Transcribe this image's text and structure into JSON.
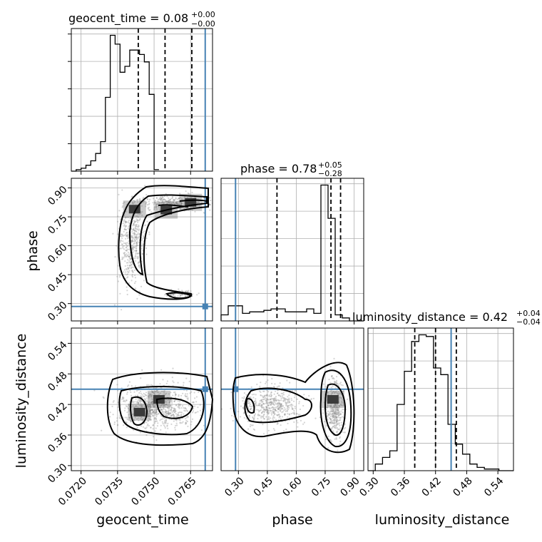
{
  "colors": {
    "truth": "#4682b4",
    "contour": "#000000",
    "grid": "#b0b0b0",
    "points": "#888888"
  },
  "chart_data": [
    {
      "type": "histogram",
      "panel": "geocent_time-marginal",
      "title_text": "geocent_time = 0.08",
      "title_sup": "+0.00",
      "title_sub": "−0.00",
      "xlim": [
        0.0716,
        0.0774
      ],
      "bins_start": 0.0716,
      "bins_step": 0.0002,
      "counts": [
        0,
        1,
        2,
        4,
        7,
        12,
        20,
        50,
        92,
        86,
        67,
        71,
        82,
        82,
        79,
        74,
        52,
        1
      ],
      "quantile_lines": [
        0.07435,
        0.07545,
        0.07655
      ],
      "truth": 0.0771,
      "grid": true
    },
    {
      "type": "histogram",
      "panel": "phase-marginal",
      "title_text": "phase = 0.78",
      "title_sup": "+0.05",
      "title_sub": "−0.28",
      "xlim": [
        0.21,
        0.95
      ],
      "bins_start": 0.21,
      "bins_step": 0.037,
      "counts": [
        4,
        10,
        10,
        5,
        6,
        6,
        7,
        8,
        8,
        6,
        6,
        6,
        8,
        5,
        90,
        68,
        4,
        2,
        0,
        0
      ],
      "quantile_lines": [
        0.5,
        0.78,
        0.83
      ],
      "truth": 0.285,
      "xticks": [
        "0.30",
        "0.45",
        "0.60",
        "0.75",
        "0.90"
      ],
      "xtick_values": [
        0.3,
        0.45,
        0.6,
        0.75,
        0.9
      ],
      "xlabel": "phase",
      "grid": true
    },
    {
      "type": "histogram",
      "panel": "luminosity_distance-marginal",
      "title_text": "luminosity_distance = 0.42",
      "title_sup": "+0.04",
      "title_sub": "−0.04",
      "xlim": [
        0.29,
        0.57
      ],
      "bins_start": 0.29,
      "bins_step": 0.014,
      "counts": [
        0,
        4,
        8,
        12,
        40,
        60,
        78,
        82,
        81,
        62,
        58,
        28,
        16,
        10,
        4,
        2,
        1,
        1,
        0,
        0
      ],
      "quantile_lines": [
        0.38,
        0.42,
        0.46
      ],
      "truth": 0.45,
      "xticks": [
        "0.30",
        "0.36",
        "0.42",
        "0.48",
        "0.54"
      ],
      "xtick_values": [
        0.3,
        0.36,
        0.42,
        0.48,
        0.54
      ],
      "xlabel": "luminosity_distance",
      "grid": true
    },
    {
      "type": "scatter",
      "panel": "phase-vs-geocent_time",
      "x_param": "geocent_time",
      "y_param": "phase",
      "xlim": [
        0.0716,
        0.0774
      ],
      "ylim": [
        0.21,
        0.95
      ],
      "yticks": [
        "0.30",
        "0.45",
        "0.60",
        "0.75",
        "0.90"
      ],
      "ytick_values": [
        0.3,
        0.45,
        0.6,
        0.75,
        0.9
      ],
      "ylabel": "phase",
      "truth": [
        0.0771,
        0.285
      ],
      "dense_cells": [
        [
          0.0755,
          0.785
        ],
        [
          0.0765,
          0.825
        ],
        [
          0.0742,
          0.79
        ]
      ],
      "grid": true
    },
    {
      "type": "scatter",
      "panel": "luminosity_distance-vs-geocent_time",
      "x_param": "geocent_time",
      "y_param": "luminosity_distance",
      "xlim": [
        0.0716,
        0.0774
      ],
      "ylim": [
        0.29,
        0.57
      ],
      "xticks": [
        "0.0720",
        "0.0735",
        "0.0750",
        "0.0765"
      ],
      "xtick_values": [
        0.072,
        0.0735,
        0.075,
        0.0765
      ],
      "yticks": [
        "0.30",
        "0.36",
        "0.42",
        "0.48",
        "0.54"
      ],
      "ytick_values": [
        0.3,
        0.36,
        0.42,
        0.48,
        0.54
      ],
      "xlabel": "geocent_time",
      "ylabel": "luminosity_distance",
      "truth": [
        0.0771,
        0.45
      ],
      "dense_cells": [
        [
          0.0744,
          0.405
        ],
        [
          0.0752,
          0.43
        ]
      ],
      "grid": true
    },
    {
      "type": "scatter",
      "panel": "luminosity_distance-vs-phase",
      "x_param": "phase",
      "y_param": "luminosity_distance",
      "xlim": [
        0.21,
        0.95
      ],
      "ylim": [
        0.29,
        0.57
      ],
      "xticks": [
        "0.30",
        "0.45",
        "0.60",
        "0.75",
        "0.90"
      ],
      "xtick_values": [
        0.3,
        0.45,
        0.6,
        0.75,
        0.9
      ],
      "xlabel": "phase",
      "truth": [
        0.285,
        0.45
      ],
      "dense_cells": [
        [
          0.79,
          0.43
        ]
      ],
      "grid": true
    }
  ]
}
